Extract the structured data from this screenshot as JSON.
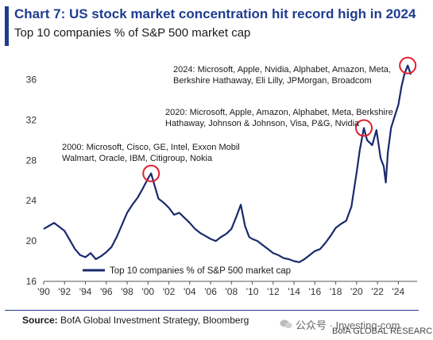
{
  "header": {
    "title": "Chart 7: US stock market concentration hit record high in 2024",
    "subtitle": "Top 10 companies % of S&P 500 market cap"
  },
  "footer": {
    "source_label": "Source:",
    "source_text": "BofA Global Investment Strategy, Bloomberg",
    "watermark": "公众号 · Investing-com",
    "brand": "BofA GLOBAL RESEARCH"
  },
  "colors": {
    "accent": "#1f3d8f",
    "line": "#1a2a6c",
    "highlight": "#e0202e"
  },
  "chart_data": {
    "type": "line",
    "title": "Chart 7: US stock market concentration hit record high in 2024",
    "subtitle": "Top 10 companies % of S&P 500 market cap",
    "ylim": [
      16,
      38
    ],
    "xlim": [
      1990,
      2025.8
    ],
    "yticks": [
      16,
      20,
      24,
      28,
      32,
      36
    ],
    "xtick_labels": [
      "'90",
      "'92",
      "'94",
      "'96",
      "'98",
      "'00",
      "'02",
      "'04",
      "'06",
      "'08",
      "'10",
      "'12",
      "'14",
      "'16",
      "'18",
      "'20",
      "'22",
      "'24"
    ],
    "xtick_years": [
      1990,
      1992,
      1994,
      1996,
      1998,
      2000,
      2002,
      2004,
      2006,
      2008,
      2010,
      2012,
      2014,
      2016,
      2018,
      2020,
      2022,
      2024
    ],
    "grid": false,
    "legend": {
      "position": "bottom-left",
      "entries": [
        "Top 10 companies % of S&P 500 market cap"
      ]
    },
    "series": [
      {
        "name": "Top 10 companies % of S&P 500 market cap",
        "x": [
          1990.0,
          1990.5,
          1991.0,
          1991.5,
          1992.0,
          1992.5,
          1993.0,
          1993.5,
          1994.0,
          1994.5,
          1995.0,
          1995.5,
          1996.0,
          1996.5,
          1997.0,
          1997.5,
          1998.0,
          1998.5,
          1999.0,
          1999.5,
          2000.0,
          2000.3,
          2000.6,
          2001.0,
          2001.5,
          2002.0,
          2002.5,
          2003.0,
          2003.5,
          2004.0,
          2004.5,
          2005.0,
          2005.5,
          2006.0,
          2006.5,
          2007.0,
          2007.5,
          2008.0,
          2008.5,
          2008.9,
          2009.3,
          2009.7,
          2010.0,
          2010.5,
          2011.0,
          2011.5,
          2012.0,
          2012.5,
          2013.0,
          2013.5,
          2014.0,
          2014.5,
          2015.0,
          2015.5,
          2016.0,
          2016.5,
          2017.0,
          2017.5,
          2018.0,
          2018.5,
          2019.0,
          2019.5,
          2020.0,
          2020.3,
          2020.7,
          2021.0,
          2021.5,
          2021.9,
          2022.3,
          2022.6,
          2022.8,
          2023.0,
          2023.3,
          2023.6,
          2024.0,
          2024.3,
          2024.6,
          2024.9,
          2025.2
        ],
        "values": [
          21.2,
          21.5,
          21.8,
          21.4,
          21.0,
          20.1,
          19.2,
          18.6,
          18.4,
          18.8,
          18.2,
          18.5,
          18.9,
          19.4,
          20.4,
          21.6,
          22.8,
          23.6,
          24.3,
          25.2,
          26.2,
          26.7,
          25.6,
          24.2,
          23.8,
          23.3,
          22.6,
          22.8,
          22.3,
          21.8,
          21.2,
          20.8,
          20.5,
          20.2,
          20.0,
          20.4,
          20.7,
          21.2,
          22.5,
          23.6,
          21.5,
          20.4,
          20.2,
          20.0,
          19.6,
          19.2,
          18.8,
          18.6,
          18.3,
          18.2,
          18.0,
          17.9,
          18.2,
          18.6,
          19.0,
          19.2,
          19.8,
          20.5,
          21.3,
          21.7,
          22.0,
          23.4,
          26.8,
          29.0,
          31.2,
          30.0,
          29.5,
          31.0,
          28.2,
          27.4,
          25.8,
          28.8,
          31.2,
          32.2,
          33.5,
          35.3,
          36.6,
          37.4,
          36.5
        ]
      }
    ],
    "annotations": [
      {
        "lines": [
          "2000: Microsoft, Cisco, GE, Intel, Exxon Mobil",
          "Walmart, Oracle, IBM, Citigroup, Nokia"
        ],
        "x": 2000.3,
        "y": 26.7
      },
      {
        "lines": [
          "2020: Microsoft, Apple, Amazon, Alphabet, Meta, Berkshire",
          "Hathaway, Johnson & Johnson, Visa, P&G, Nvidia"
        ],
        "x": 2020.7,
        "y": 31.2
      },
      {
        "lines": [
          "2024: Microsoft, Apple, Nvidia, Alphabet, Amazon, Meta,",
          "Berkshire Hathaway, Eli Lilly, JPMorgan, Broadcom"
        ],
        "x": 2024.9,
        "y": 37.4
      }
    ]
  }
}
